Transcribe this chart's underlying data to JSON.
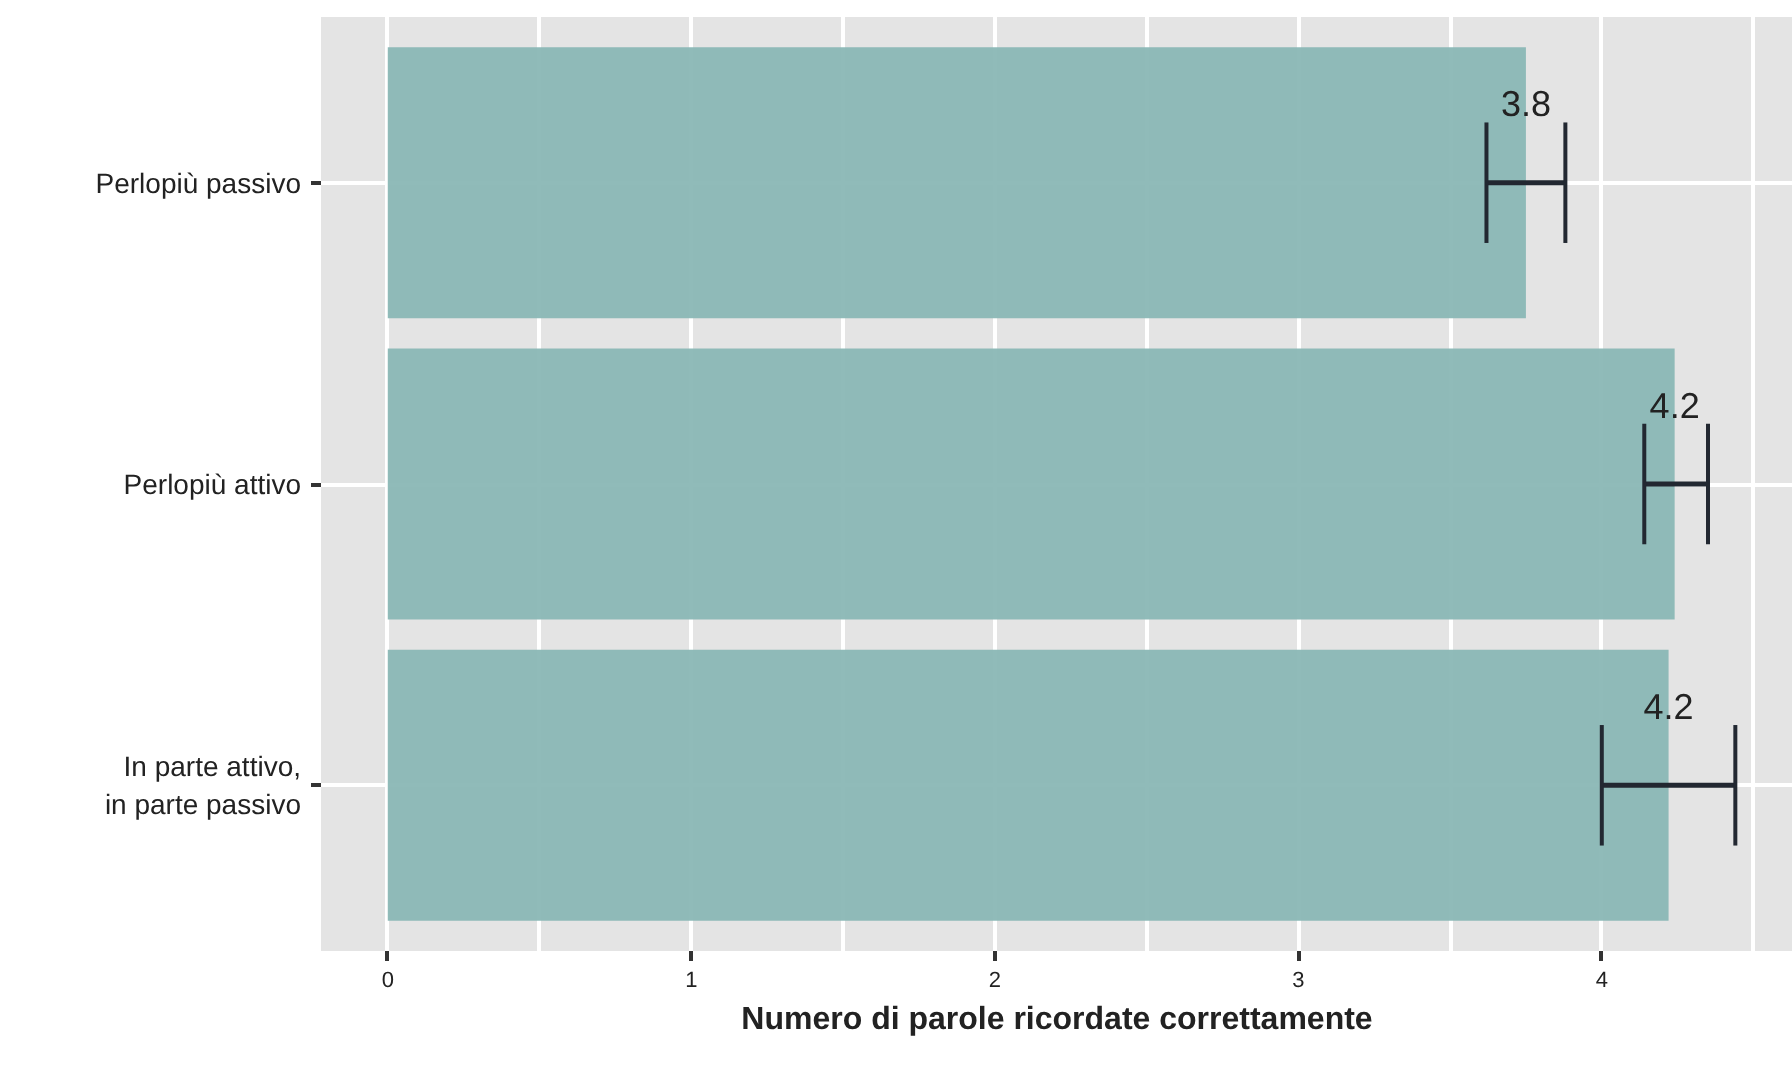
{
  "chart_data": {
    "type": "bar",
    "orientation": "horizontal",
    "xlabel": "Numero di parole ricordate correttamente",
    "categories": [
      "Perlopiù passivo",
      "Perlopiù attivo",
      "In parte attivo,\nin parte passivo"
    ],
    "values": [
      3.75,
      4.24,
      4.22
    ],
    "errors": [
      [
        3.62,
        3.88
      ],
      [
        4.14,
        4.35
      ],
      [
        4.0,
        4.44
      ]
    ],
    "value_labels": [
      "3.8",
      "4.2",
      "4.2"
    ],
    "color": "#8ab7b5",
    "xlim": [
      -0.22,
      4.63
    ],
    "xticks": [
      0,
      {
        "value": 0.5,
        "label": null
      },
      1,
      {
        "value": 1.5,
        "label": null
      },
      2,
      {
        "value": 2.5,
        "label": null
      },
      3,
      {
        "value": 3.5,
        "label": null
      },
      4,
      {
        "value": 4.5,
        "label": null
      }
    ],
    "grid": true
  }
}
